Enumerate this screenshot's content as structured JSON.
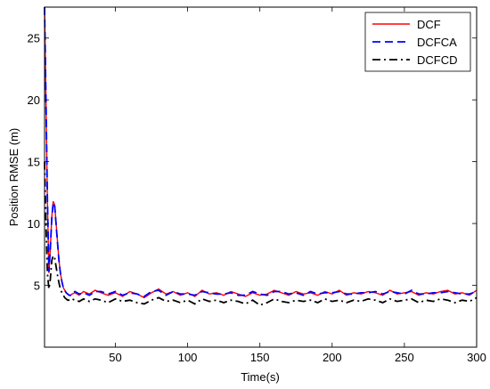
{
  "chart_data": {
    "type": "line",
    "xlabel": "Time(s)",
    "ylabel": "Position RMSE (m)",
    "xlim": [
      1,
      300
    ],
    "ylim": [
      0,
      27.5
    ],
    "xticks": [
      50,
      100,
      150,
      200,
      250,
      300
    ],
    "yticks": [
      5,
      10,
      15,
      20,
      25
    ],
    "grid": false,
    "legend_position": "top-right",
    "series": [
      {
        "name": "DCF",
        "color": "#ff0000",
        "style": "solid",
        "x": [
          1,
          2,
          3,
          4,
          5,
          6,
          7,
          8,
          9,
          10,
          11,
          12,
          13,
          14,
          15,
          16,
          17,
          18,
          19,
          20,
          22,
          25,
          28,
          32,
          36,
          40,
          45,
          50,
          55,
          60,
          65,
          70,
          75,
          80,
          85,
          90,
          95,
          100,
          105,
          110,
          115,
          120,
          125,
          130,
          135,
          140,
          145,
          150,
          155,
          160,
          165,
          170,
          175,
          180,
          185,
          190,
          195,
          200,
          205,
          210,
          215,
          220,
          225,
          230,
          235,
          240,
          245,
          250,
          255,
          260,
          265,
          270,
          275,
          280,
          285,
          290,
          295,
          300
        ],
        "y": [
          27.5,
          20,
          12,
          6,
          8,
          10.5,
          11.8,
          11.5,
          10,
          8.5,
          7,
          6,
          5.3,
          4.8,
          4.6,
          4.4,
          4.3,
          4.2,
          4.2,
          4.3,
          4.4,
          4.2,
          4.5,
          4.3,
          4.6,
          4.4,
          4.2,
          4.4,
          4.1,
          4.5,
          4.3,
          4.0,
          4.4,
          4.7,
          4.3,
          4.5,
          4.2,
          4.4,
          4.1,
          4.6,
          4.3,
          4.4,
          4.2,
          4.5,
          4.3,
          4.1,
          4.4,
          4.2,
          4.3,
          4.6,
          4.4,
          4.2,
          4.5,
          4.3,
          4.4,
          4.2,
          4.5,
          4.3,
          4.6,
          4.2,
          4.4,
          4.3,
          4.5,
          4.4,
          4.2,
          4.6,
          4.3,
          4.4,
          4.5,
          4.2,
          4.4,
          4.3,
          4.5,
          4.6,
          4.3,
          4.4,
          4.2,
          4.6
        ]
      },
      {
        "name": "DCFCA",
        "color": "#0000ff",
        "style": "dashed",
        "x": [
          1,
          2,
          3,
          4,
          5,
          6,
          7,
          8,
          9,
          10,
          11,
          12,
          13,
          14,
          15,
          16,
          17,
          18,
          19,
          20,
          22,
          25,
          28,
          32,
          36,
          40,
          45,
          50,
          55,
          60,
          65,
          70,
          75,
          80,
          85,
          90,
          95,
          100,
          105,
          110,
          115,
          120,
          125,
          130,
          135,
          140,
          145,
          150,
          155,
          160,
          165,
          170,
          175,
          180,
          185,
          190,
          195,
          200,
          205,
          210,
          215,
          220,
          225,
          230,
          235,
          240,
          245,
          250,
          255,
          260,
          265,
          270,
          275,
          280,
          285,
          290,
          295,
          300
        ],
        "y": [
          27.5,
          20,
          12,
          6.1,
          8,
          10.4,
          11.7,
          11.4,
          9.9,
          8.4,
          7,
          6,
          5.3,
          4.8,
          4.6,
          4.4,
          4.3,
          4.2,
          4.2,
          4.4,
          4.5,
          4.3,
          4.4,
          4.2,
          4.5,
          4.5,
          4.3,
          4.5,
          4.2,
          4.4,
          4.3,
          4.1,
          4.5,
          4.6,
          4.2,
          4.5,
          4.3,
          4.3,
          4.2,
          4.5,
          4.4,
          4.3,
          4.3,
          4.4,
          4.2,
          4.2,
          4.5,
          4.3,
          4.2,
          4.5,
          4.5,
          4.3,
          4.4,
          4.2,
          4.5,
          4.3,
          4.4,
          4.4,
          4.5,
          4.3,
          4.3,
          4.4,
          4.4,
          4.5,
          4.3,
          4.5,
          4.4,
          4.3,
          4.6,
          4.3,
          4.3,
          4.4,
          4.4,
          4.5,
          4.4,
          4.3,
          4.3,
          4.5
        ]
      },
      {
        "name": "DCFCD",
        "color": "#000000",
        "style": "dashdot",
        "x": [
          1,
          2,
          3,
          4,
          5,
          6,
          7,
          8,
          9,
          10,
          11,
          12,
          13,
          14,
          15,
          16,
          17,
          18,
          19,
          20,
          22,
          25,
          28,
          32,
          36,
          40,
          45,
          50,
          55,
          60,
          65,
          70,
          75,
          80,
          85,
          90,
          95,
          100,
          105,
          110,
          115,
          120,
          125,
          130,
          135,
          140,
          145,
          150,
          155,
          160,
          165,
          170,
          175,
          180,
          185,
          190,
          195,
          200,
          205,
          210,
          215,
          220,
          225,
          230,
          235,
          240,
          245,
          250,
          255,
          260,
          265,
          270,
          275,
          280,
          285,
          290,
          295,
          300
        ],
        "y": [
          15,
          10,
          6,
          4.7,
          5.5,
          7,
          7.4,
          7.2,
          6.5,
          5.8,
          5.2,
          4.7,
          4.4,
          4.2,
          4.0,
          3.9,
          3.8,
          3.8,
          3.8,
          3.9,
          3.8,
          3.7,
          3.9,
          3.7,
          3.9,
          3.8,
          3.6,
          3.9,
          3.7,
          3.8,
          3.6,
          3.5,
          3.8,
          4.0,
          3.7,
          3.8,
          3.6,
          3.8,
          3.5,
          3.9,
          3.7,
          3.8,
          3.6,
          3.8,
          3.7,
          3.5,
          3.8,
          3.4,
          3.6,
          3.9,
          3.7,
          3.6,
          3.8,
          3.7,
          3.8,
          3.6,
          3.9,
          3.7,
          3.8,
          3.6,
          3.8,
          3.7,
          3.9,
          3.8,
          3.6,
          3.9,
          3.7,
          3.8,
          3.9,
          3.6,
          3.8,
          3.7,
          3.9,
          3.8,
          3.6,
          3.8,
          3.7,
          4.0
        ]
      }
    ]
  }
}
